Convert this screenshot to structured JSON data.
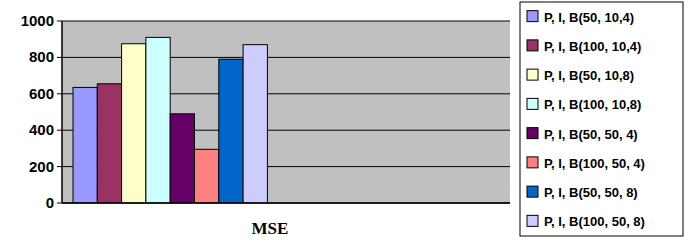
{
  "chart_data": {
    "type": "bar",
    "categories": [
      "MSE"
    ],
    "series": [
      {
        "name": "P, I, B(50, 10,4)",
        "color": "#9999ff",
        "values": [
          635
        ]
      },
      {
        "name": "P, I, B(100, 10,4)",
        "color": "#993366",
        "values": [
          655
        ]
      },
      {
        "name": "P, I, B(50, 10,8)",
        "color": "#ffffcc",
        "values": [
          875
        ]
      },
      {
        "name": "P, I, B(100, 10,8)",
        "color": "#ccffff",
        "values": [
          910
        ]
      },
      {
        "name": "P, I, B(50, 50, 4)",
        "color": "#660066",
        "values": [
          490
        ]
      },
      {
        "name": "P, I, B(100, 50, 4)",
        "color": "#ff8080",
        "values": [
          295
        ]
      },
      {
        "name": "P, I, B(50, 50, 8)",
        "color": "#0066cc",
        "values": [
          790
        ]
      },
      {
        "name": "P, I, B(100, 50, 8)",
        "color": "#ccccff",
        "values": [
          870
        ]
      }
    ],
    "ylim": [
      0,
      1000
    ],
    "yticks": [
      0,
      200,
      400,
      600,
      800,
      1000
    ],
    "grid": true,
    "legend": "right"
  }
}
